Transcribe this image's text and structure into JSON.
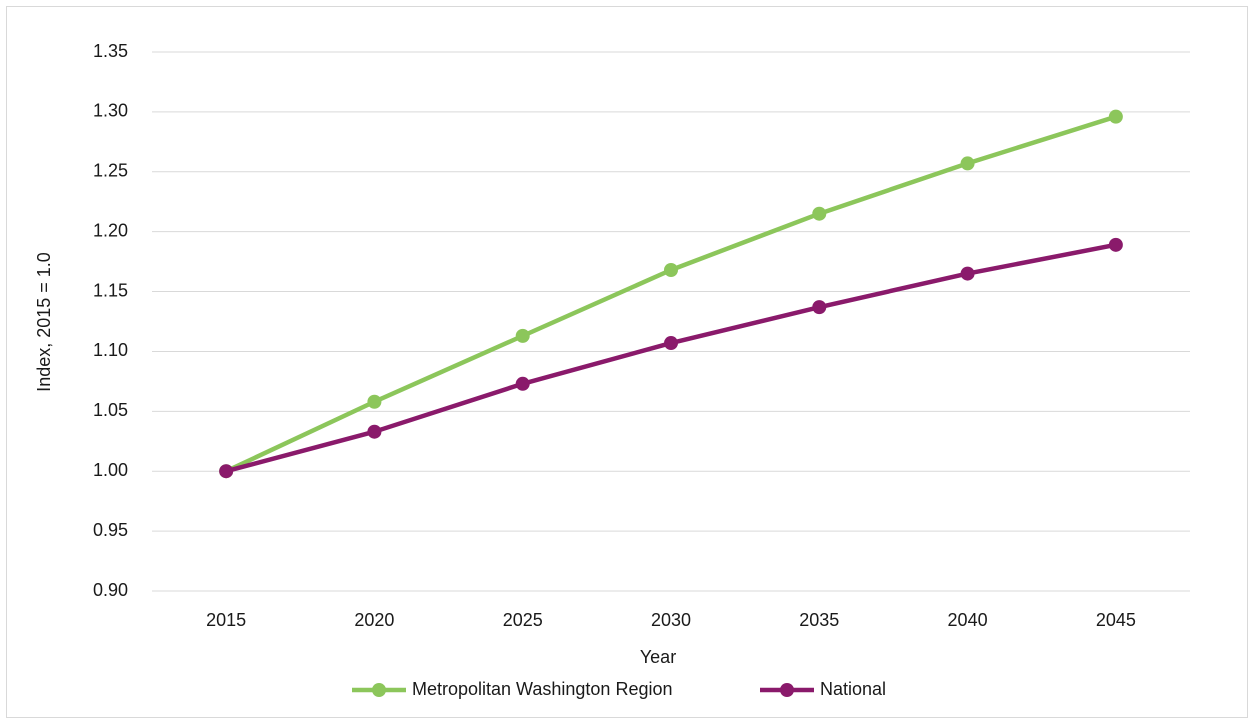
{
  "chart_data": {
    "type": "line",
    "x_label": "Year",
    "y_label": "Index, 2015 = 1.0",
    "categories": [
      "2015",
      "2020",
      "2025",
      "2030",
      "2035",
      "2040",
      "2045"
    ],
    "series": [
      {
        "name": "Metropolitan Washington Region",
        "color": "#8cc65b",
        "values": [
          1.0,
          1.058,
          1.113,
          1.168,
          1.215,
          1.257,
          1.296
        ]
      },
      {
        "name": "National",
        "color": "#8a1a6b",
        "values": [
          1.0,
          1.033,
          1.073,
          1.107,
          1.137,
          1.165,
          1.189
        ]
      }
    ],
    "ylim": [
      0.9,
      1.35
    ],
    "yticks": [
      {
        "value": 0.9,
        "label": "0.90"
      },
      0.95,
      {
        "value": 1.0,
        "label": "1.00"
      },
      1.05,
      {
        "value": 1.1,
        "label": "1.10"
      },
      1.15,
      {
        "value": 1.2,
        "label": "1.20"
      },
      1.25,
      {
        "value": 1.3,
        "label": "1.30"
      },
      1.35
    ],
    "grid": true,
    "legend": "bottom"
  }
}
